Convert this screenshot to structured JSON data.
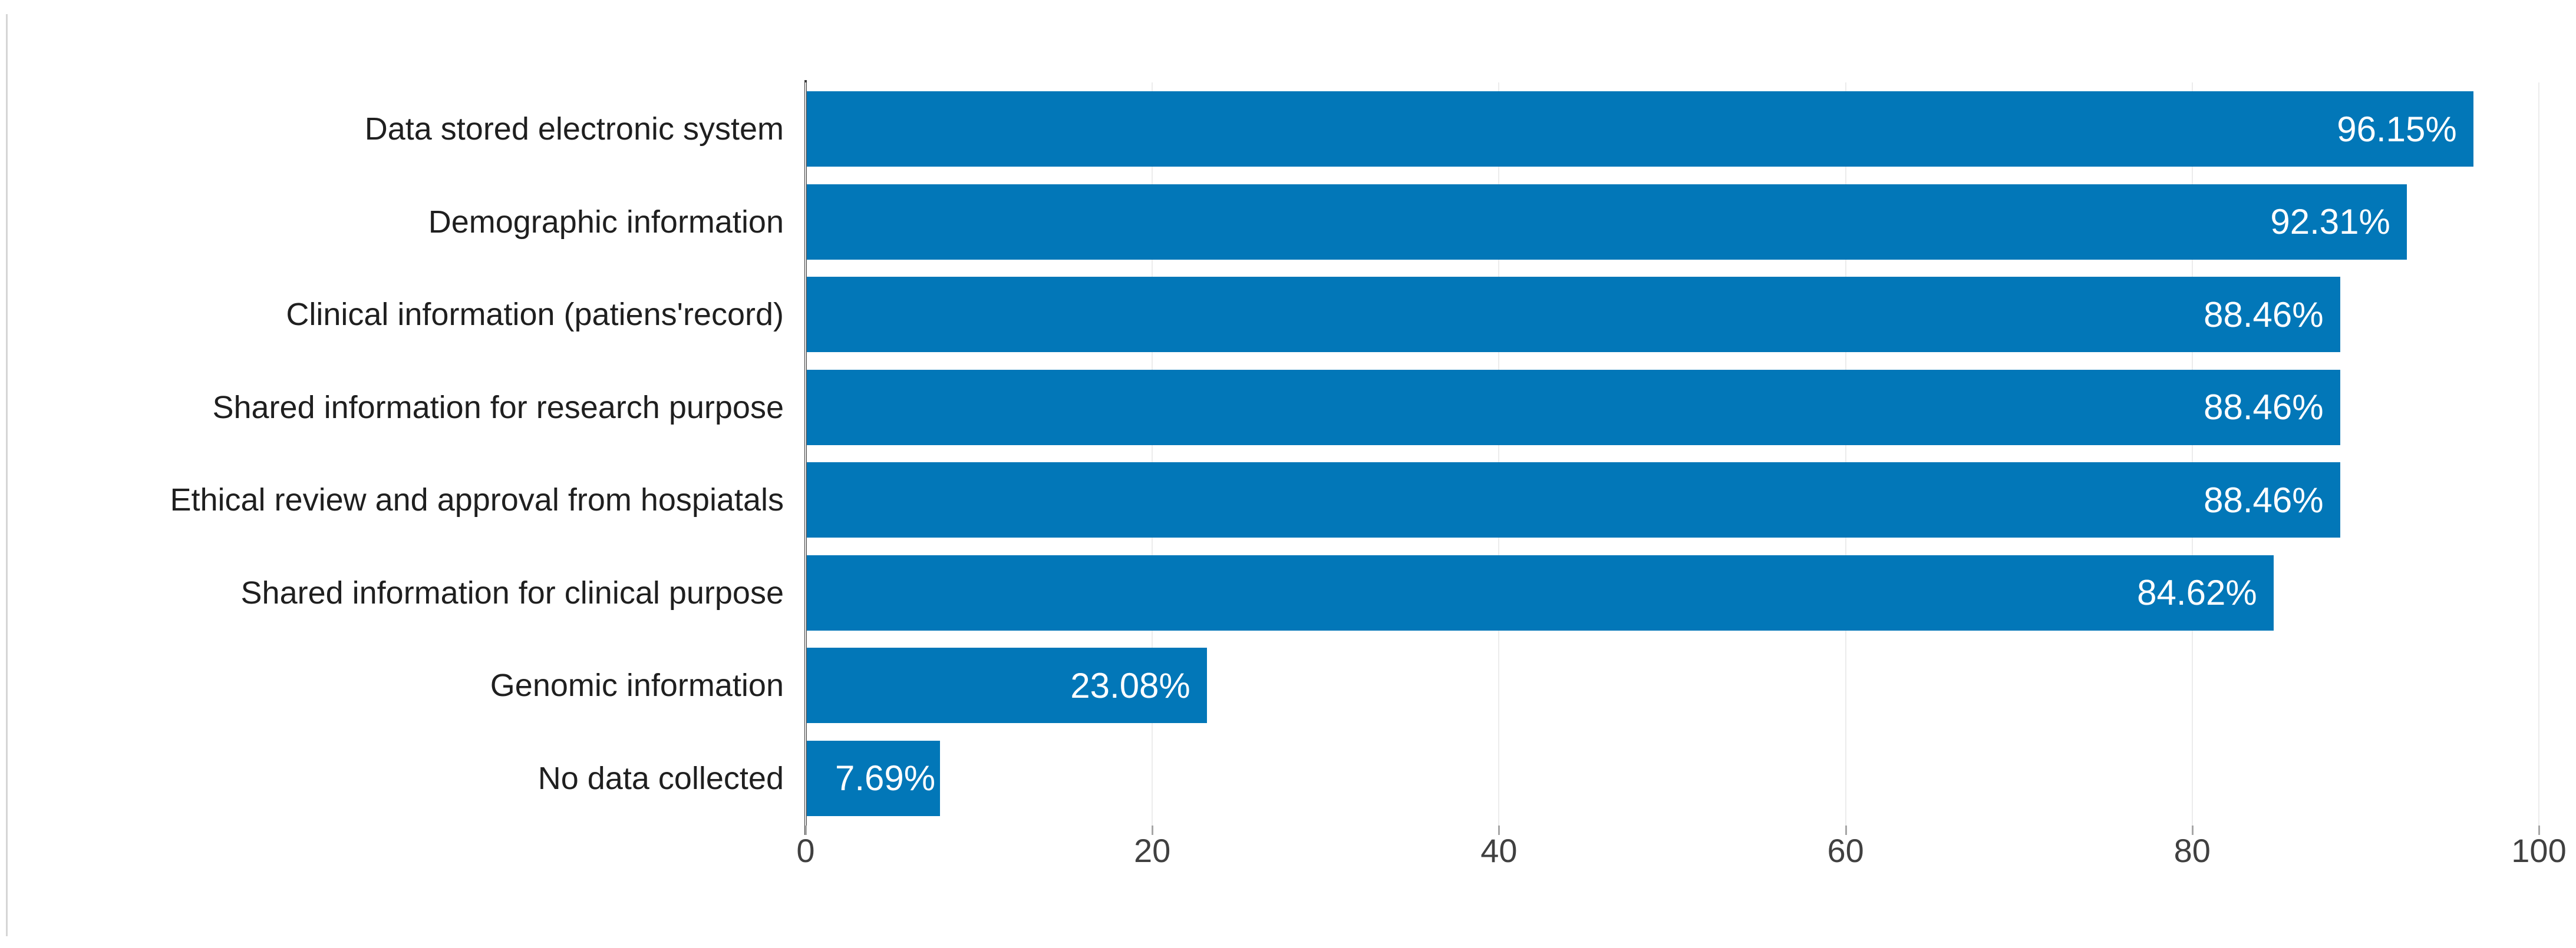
{
  "chart_data": {
    "type": "bar",
    "orientation": "horizontal",
    "title": "",
    "xlabel": "",
    "ylabel": "",
    "categories": [
      "Data stored electronic system",
      "Demographic information",
      "Clinical information (patiens'record)",
      "Shared information for research purpose",
      "Ethical review and approval from hospiatals",
      "Shared information for clinical purpose",
      "Genomic information",
      "No data collected"
    ],
    "values": [
      96.15,
      92.31,
      88.46,
      88.46,
      88.46,
      84.62,
      23.08,
      7.69
    ],
    "value_labels": [
      "96.15%",
      "92.31%",
      "88.46%",
      "88.46%",
      "88.46%",
      "84.62%",
      "23.08%",
      "7.69%"
    ],
    "x_ticks": [
      "0",
      "20",
      "40",
      "60",
      "80",
      "100"
    ],
    "x_tick_values": [
      0,
      20,
      40,
      60,
      80,
      100
    ],
    "xlim": [
      0,
      100
    ],
    "grid": true,
    "legend_position": "none",
    "colors": {
      "bar": "#0277b8",
      "value_label": "#ffffff",
      "category_label": "#1f1f1f",
      "tick_label": "#404040",
      "gridline": "#ececec",
      "axis_line": "#3a3a3a",
      "figure_border": "#d6d6d6",
      "background": "#ffffff"
    }
  }
}
